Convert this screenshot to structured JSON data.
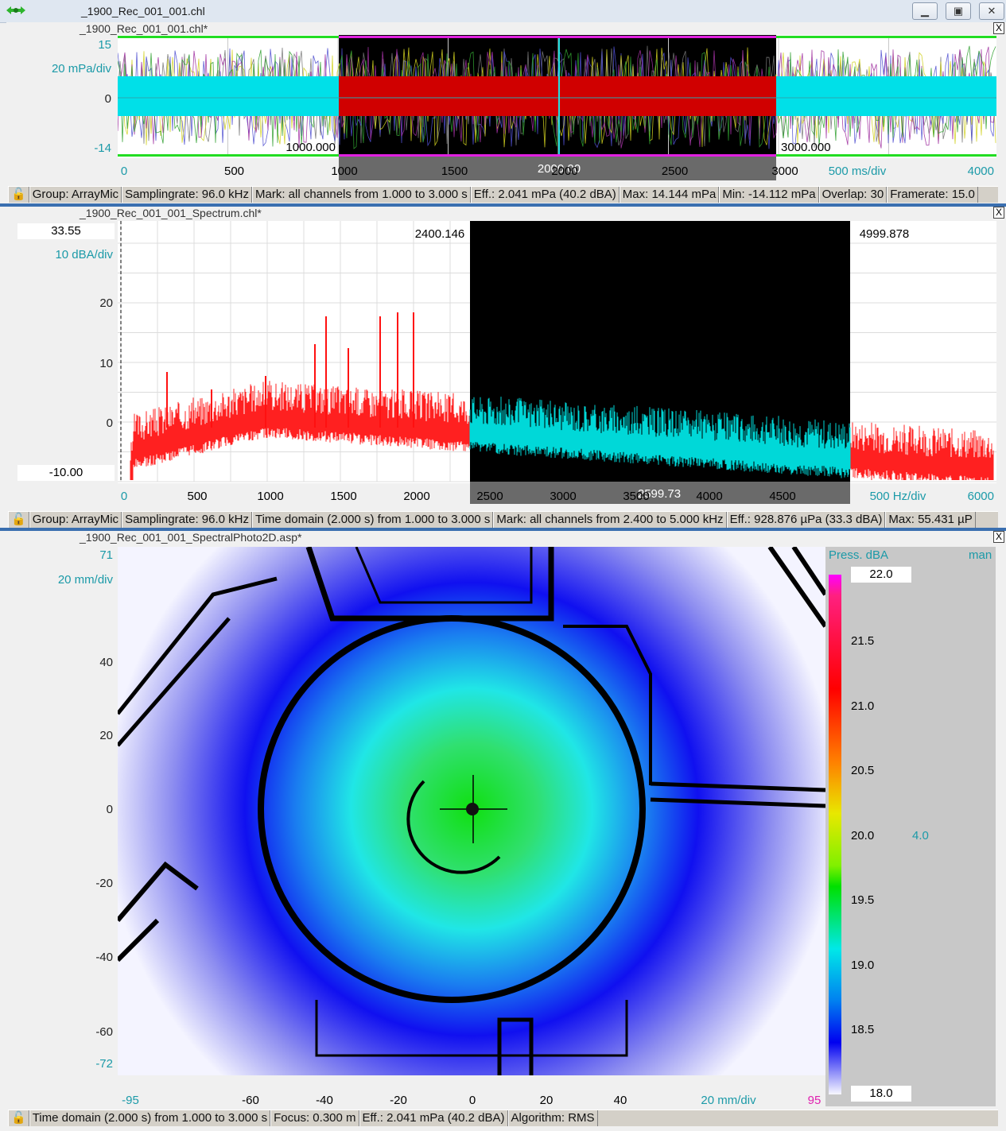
{
  "window": {
    "title": "_1900_Rec_001_001.chl"
  },
  "panel1": {
    "title": "_1900_Rec_001_001.chl*",
    "y_top": "15",
    "y_div": "20 mPa/div",
    "y_zero": "0",
    "y_bottom": "-14",
    "mark_left": "1000.000",
    "mark_right": "3000.000",
    "cursor": "2000.00",
    "x_ticks": [
      "0",
      "500",
      "1000",
      "1500",
      "2000",
      "2500",
      "3000"
    ],
    "x_div": "500 ms/div",
    "x_max": "4000",
    "status": [
      "Group: ArrayMic",
      "Samplingrate: 96.0 kHz",
      "Mark: all channels from 1.000 to 3.000 s",
      "Eff.: 2.041 mPa (40.2 dBA)",
      "Max: 14.144 mPa",
      "Min: -14.112 mPa",
      "Overlap: 30",
      "Framerate: 15.0"
    ]
  },
  "panel2": {
    "title": "_1900_Rec_001_001_Spectrum.chl*",
    "y_top": "33.55",
    "y_div": "10 dBA/div",
    "y_ticks": [
      "20",
      "10",
      "0"
    ],
    "y_bottom": "-10.00",
    "mark_left": "2400.146",
    "mark_right": "4999.878",
    "cursor": "2599.73",
    "x_ticks": [
      "0",
      "500",
      "1000",
      "1500",
      "2000",
      "2500",
      "3000",
      "3500",
      "4000",
      "4500"
    ],
    "x_div": "500 Hz/div",
    "x_max": "6000",
    "status": [
      "Group: ArrayMic",
      "Samplingrate: 96.0 kHz",
      "Time domain (2.000 s) from 1.000 to 3.000 s",
      "Mark: all channels from 2.400 to 5.000 kHz",
      "Eff.: 928.876 µPa (33.3 dBA)",
      "Max: 55.431 µP"
    ]
  },
  "panel3": {
    "title": "_1900_Rec_001_001_SpectralPhoto2D.asp*",
    "y_top": "71",
    "y_div": "20 mm/div",
    "y_ticks": [
      "40",
      "20",
      "0",
      "-20",
      "-40",
      "-60"
    ],
    "y_bottom": "-72",
    "x_ticks": [
      "-60",
      "-40",
      "-20",
      "0",
      "20",
      "40"
    ],
    "x_min": "-95",
    "x_div": "20 mm/div",
    "x_max": "95",
    "legend_title": "Press. dBA",
    "legend_mode": "man",
    "legend_max": "22.0",
    "legend_ticks": [
      "21.5",
      "21.0",
      "20.5",
      "20.0",
      "19.5",
      "19.0",
      "18.5"
    ],
    "legend_min": "18.0",
    "legend_range": "4.0",
    "status": [
      "Time domain (2.000 s) from 1.000 to 3.000 s",
      "Focus: 0.300 m",
      "Eff.: 2.041 mPa (40.2 dBA)",
      "Algorithm: RMS"
    ]
  },
  "colors": {
    "accent": "#1b9aa8",
    "mark_bg": "#000000",
    "signal": "#00e5e5",
    "marked_signal": "#e00000",
    "spectrum": "#ff2020",
    "green_rail": "#22dd22",
    "magenta_rail": "#e020e0"
  }
}
